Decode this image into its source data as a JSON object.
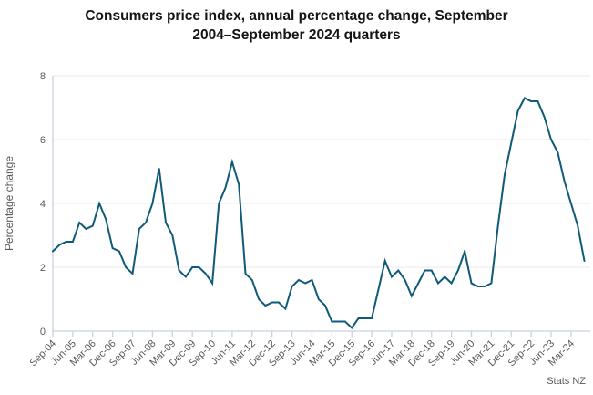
{
  "title_line1": "Consumers price index, annual percentage change, September",
  "title_line2": "2004–September 2024 quarters",
  "footer": {
    "source": "Stats NZ"
  },
  "colors": {
    "line": "#0f5a78",
    "grid": "#e8e8e8",
    "axis": "#c8d1e8",
    "tick_label": "#595959",
    "title_text": "#141414"
  },
  "chart_data": {
    "type": "line",
    "title": "Consumers price index, annual percentage change, September 2004–September 2024 quarters",
    "xlabel": "",
    "ylabel": "Percentage change",
    "ylim": [
      0,
      8
    ],
    "y_ticks": [
      0,
      2,
      4,
      6,
      8
    ],
    "grid": "horizontal",
    "legend_position": "none",
    "x_tick_labels": [
      "Sep-04",
      "Jun-05",
      "Mar-06",
      "Dec-06",
      "Sep-07",
      "Jun-08",
      "Mar-09",
      "Dec-09",
      "Sep-10",
      "Jun-11",
      "Mar-12",
      "Dec-12",
      "Sep-13",
      "Jun-14",
      "Mar-15",
      "Dec-15",
      "Sep-16",
      "Jun-17",
      "Mar-18",
      "Dec-18",
      "Sep-19",
      "Jun-20",
      "Mar-21",
      "Dec-21",
      "Sep-22",
      "Jun-23",
      "Mar-24"
    ],
    "categories": [
      "Sep-04",
      "Dec-04",
      "Mar-05",
      "Jun-05",
      "Sep-05",
      "Dec-05",
      "Mar-06",
      "Jun-06",
      "Sep-06",
      "Dec-06",
      "Mar-07",
      "Jun-07",
      "Sep-07",
      "Dec-07",
      "Mar-08",
      "Jun-08",
      "Sep-08",
      "Dec-08",
      "Mar-09",
      "Jun-09",
      "Sep-09",
      "Dec-09",
      "Mar-10",
      "Jun-10",
      "Sep-10",
      "Dec-10",
      "Mar-11",
      "Jun-11",
      "Sep-11",
      "Dec-11",
      "Mar-12",
      "Jun-12",
      "Sep-12",
      "Dec-12",
      "Mar-13",
      "Jun-13",
      "Sep-13",
      "Dec-13",
      "Mar-14",
      "Jun-14",
      "Sep-14",
      "Dec-14",
      "Mar-15",
      "Jun-15",
      "Sep-15",
      "Dec-15",
      "Mar-16",
      "Jun-16",
      "Sep-16",
      "Dec-16",
      "Mar-17",
      "Jun-17",
      "Sep-17",
      "Dec-17",
      "Mar-18",
      "Jun-18",
      "Sep-18",
      "Dec-18",
      "Mar-19",
      "Jun-19",
      "Sep-19",
      "Dec-19",
      "Mar-20",
      "Jun-20",
      "Sep-20",
      "Dec-20",
      "Mar-21",
      "Jun-21",
      "Sep-21",
      "Dec-21",
      "Mar-22",
      "Jun-22",
      "Sep-22",
      "Dec-22",
      "Mar-23",
      "Jun-23",
      "Sep-23",
      "Dec-23",
      "Mar-24",
      "Jun-24",
      "Sep-24"
    ],
    "values": [
      2.5,
      2.7,
      2.8,
      2.8,
      3.4,
      3.2,
      3.3,
      4.0,
      3.5,
      2.6,
      2.5,
      2.0,
      1.8,
      3.2,
      3.4,
      4.0,
      5.1,
      3.4,
      3.0,
      1.9,
      1.7,
      2.0,
      2.0,
      1.8,
      1.5,
      4.0,
      4.5,
      5.3,
      4.6,
      1.8,
      1.6,
      1.0,
      0.8,
      0.9,
      0.9,
      0.7,
      1.4,
      1.6,
      1.5,
      1.6,
      1.0,
      0.8,
      0.3,
      0.3,
      0.3,
      0.1,
      0.4,
      0.4,
      0.4,
      1.3,
      2.2,
      1.7,
      1.9,
      1.6,
      1.1,
      1.5,
      1.9,
      1.9,
      1.5,
      1.7,
      1.5,
      1.9,
      2.5,
      1.5,
      1.4,
      1.4,
      1.5,
      3.3,
      4.9,
      5.9,
      6.9,
      7.3,
      7.2,
      7.2,
      6.7,
      6.0,
      5.6,
      4.7,
      4.0,
      3.3,
      2.2
    ]
  }
}
